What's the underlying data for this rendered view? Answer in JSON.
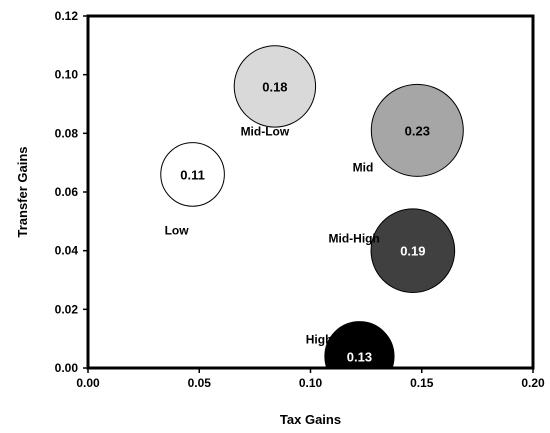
{
  "chart_data": {
    "type": "scatter",
    "subtype": "bubble",
    "title": "",
    "xlabel": "Tax Gains",
    "ylabel": "Transfer Gains",
    "xlim": [
      0,
      0.2
    ],
    "ylim": [
      0,
      0.12
    ],
    "x_ticks": [
      "0.00",
      "0.05",
      "0.10",
      "0.15",
      "0.20"
    ],
    "y_ticks": [
      "0.00",
      "0.02",
      "0.04",
      "0.06",
      "0.08",
      "0.10",
      "0.12"
    ],
    "grid": false,
    "legend": "none",
    "points": [
      {
        "category": "Low",
        "x": 0.047,
        "y": 0.066,
        "size": 0.11,
        "label": "0.11",
        "color": "#ffffff",
        "label_color": "#000000"
      },
      {
        "category": "Mid-Low",
        "x": 0.084,
        "y": 0.096,
        "size": 0.18,
        "label": "0.18",
        "color": "#d9d9d9",
        "label_color": "#000000"
      },
      {
        "category": "Mid",
        "x": 0.148,
        "y": 0.081,
        "size": 0.23,
        "label": "0.23",
        "color": "#a6a6a6",
        "label_color": "#000000"
      },
      {
        "category": "Mid-High",
        "x": 0.146,
        "y": 0.04,
        "size": 0.19,
        "label": "0.19",
        "color": "#404040",
        "label_color": "#ffffff"
      },
      {
        "category": "High",
        "x": 0.122,
        "y": 0.004,
        "size": 0.13,
        "label": "0.13",
        "color": "#000000",
        "label_color": "#ffffff"
      }
    ]
  }
}
